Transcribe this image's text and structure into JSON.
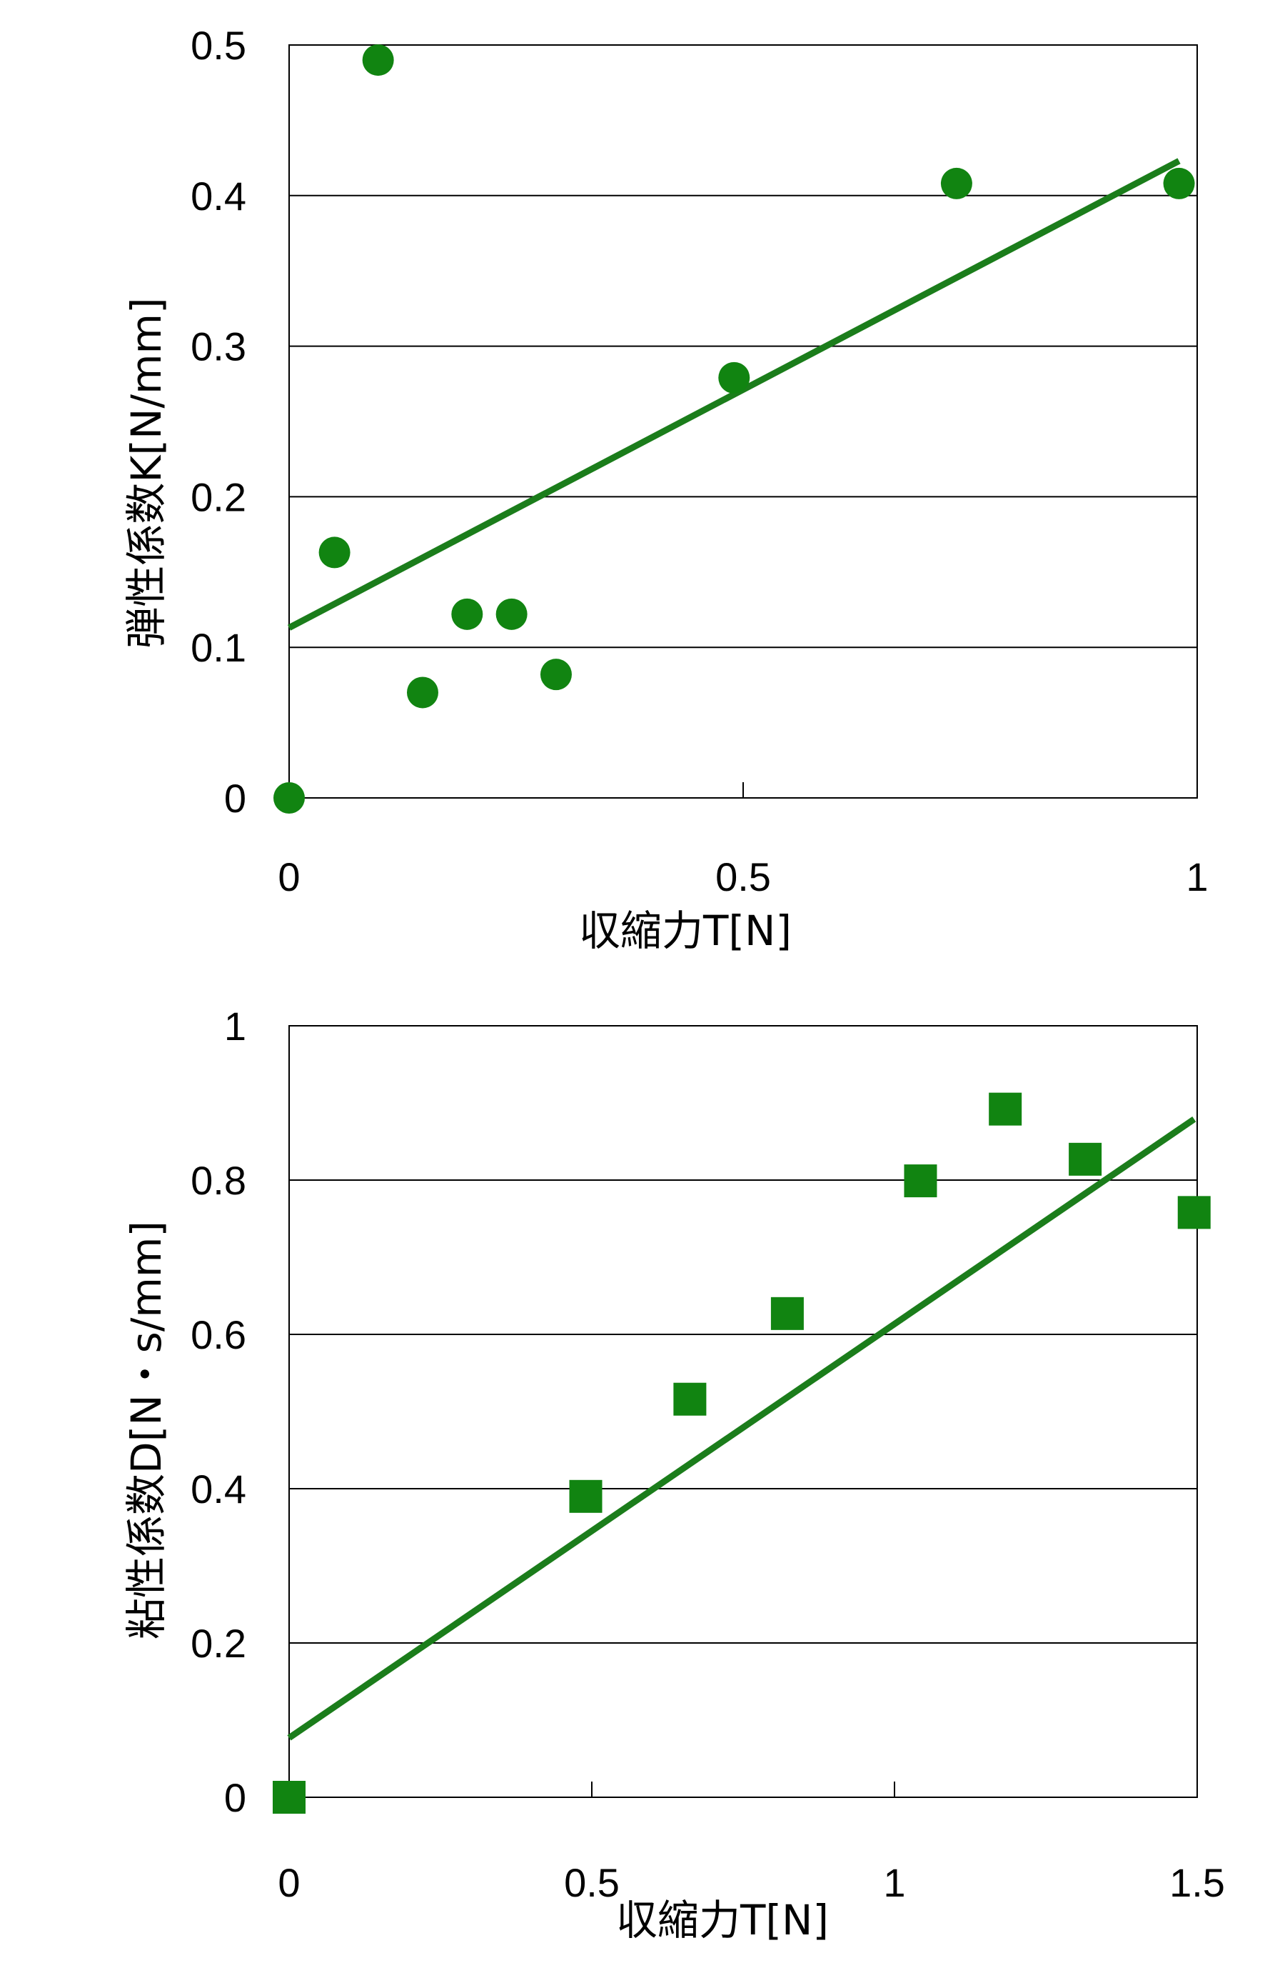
{
  "chart_data": [
    {
      "type": "scatter",
      "marker": "circle",
      "color": "#118411",
      "xlabel": "収縮力T[N]",
      "ylabel": "弾性係数K[N/mm]",
      "xlim": [
        0,
        1
      ],
      "ylim": [
        0,
        0.5
      ],
      "xticks": [
        "0",
        "0.5",
        "1"
      ],
      "yticks": [
        "0",
        "0.1",
        "0.2",
        "0.3",
        "0.4",
        "0.5"
      ],
      "grid": "horizontal",
      "points": [
        {
          "x": 0.0,
          "y": 0.0
        },
        {
          "x": 0.05,
          "y": 0.163
        },
        {
          "x": 0.098,
          "y": 0.49
        },
        {
          "x": 0.147,
          "y": 0.07
        },
        {
          "x": 0.196,
          "y": 0.122
        },
        {
          "x": 0.245,
          "y": 0.122
        },
        {
          "x": 0.294,
          "y": 0.082
        },
        {
          "x": 0.49,
          "y": 0.279
        },
        {
          "x": 0.735,
          "y": 0.408
        },
        {
          "x": 0.98,
          "y": 0.408
        }
      ],
      "trendline": {
        "x": [
          0,
          0.98
        ],
        "y": [
          0.113,
          0.423
        ]
      }
    },
    {
      "type": "scatter",
      "marker": "square",
      "color": "#118411",
      "xlabel": "収縮力T[N]",
      "ylabel": "粘性係数D[N・s/mm]",
      "xlim": [
        0,
        1.5
      ],
      "ylim": [
        0,
        1
      ],
      "xticks": [
        "0",
        "0.5",
        "1",
        "1.5"
      ],
      "yticks": [
        "0",
        "0.2",
        "0.4",
        "0.6",
        "0.8",
        "1"
      ],
      "grid": "horizontal",
      "points": [
        {
          "x": 0.0,
          "y": 0.0
        },
        {
          "x": 0.49,
          "y": 0.39
        },
        {
          "x": 0.662,
          "y": 0.516
        },
        {
          "x": 0.823,
          "y": 0.627
        },
        {
          "x": 1.043,
          "y": 0.799
        },
        {
          "x": 1.183,
          "y": 0.892
        },
        {
          "x": 1.315,
          "y": 0.827
        },
        {
          "x": 1.495,
          "y": 0.758
        }
      ],
      "trendline": {
        "x": [
          0,
          1.495
        ],
        "y": [
          0.077,
          0.879
        ]
      }
    }
  ]
}
